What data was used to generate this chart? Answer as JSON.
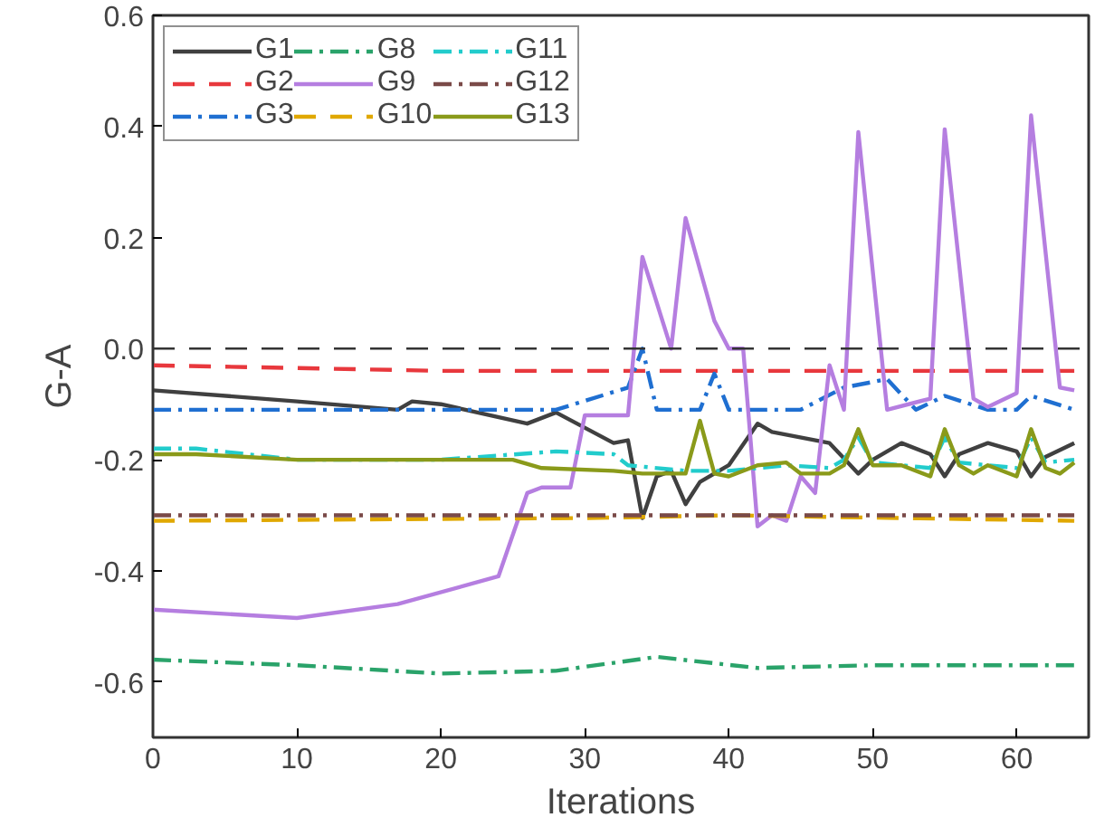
{
  "chart_data": {
    "type": "line",
    "xlabel": "Iterations",
    "ylabel": "G-A",
    "xlim": [
      0,
      65
    ],
    "ylim": [
      -0.7,
      0.6
    ],
    "xticks": [
      0,
      10,
      20,
      30,
      40,
      50,
      60
    ],
    "yticks": [
      {
        "value": -0.6,
        "label": "-0.6"
      },
      {
        "value": -0.4,
        "label": "-0.4"
      },
      {
        "value": -0.2,
        "label": "-0.2"
      },
      {
        "value": 0,
        "label": "0.0"
      },
      {
        "value": 0.2,
        "label": "0.2"
      },
      {
        "value": 0.4,
        "label": "0.4"
      },
      {
        "value": 0.6,
        "label": "0.6"
      }
    ],
    "grid": false,
    "legend": "top left",
    "marker": "none",
    "ref_lines": [
      {
        "axis": "y",
        "value": 0,
        "color": "#333333",
        "line_style": "dashed"
      }
    ],
    "series": [
      {
        "name": "G1",
        "color": "#404040",
        "line_style": "solid",
        "x": [
          0,
          10,
          17,
          18,
          20,
          26,
          28,
          32,
          33,
          34,
          35,
          36,
          37,
          38,
          40,
          42,
          43,
          47,
          49,
          50,
          52,
          54,
          55,
          56,
          58,
          60,
          61,
          62,
          64
        ],
        "values": [
          -0.075,
          -0.095,
          -0.11,
          -0.095,
          -0.1,
          -0.135,
          -0.115,
          -0.17,
          -0.165,
          -0.305,
          -0.23,
          -0.22,
          -0.28,
          -0.24,
          -0.21,
          -0.135,
          -0.15,
          -0.17,
          -0.225,
          -0.2,
          -0.17,
          -0.19,
          -0.23,
          -0.19,
          -0.17,
          -0.185,
          -0.23,
          -0.195,
          -0.17
        ]
      },
      {
        "name": "G2",
        "color": "#e8383d",
        "line_style": "dashed",
        "x": [
          0,
          20,
          40,
          64
        ],
        "values": [
          -0.03,
          -0.04,
          -0.04,
          -0.04
        ]
      },
      {
        "name": "G3",
        "color": "#1f6fd1",
        "line_style": "dashdot",
        "x": [
          0,
          28,
          33,
          34,
          35,
          38,
          39,
          40,
          45,
          48,
          51,
          53,
          55,
          58,
          60,
          61,
          64
        ],
        "values": [
          -0.11,
          -0.11,
          -0.07,
          0.0,
          -0.11,
          -0.11,
          -0.045,
          -0.11,
          -0.11,
          -0.07,
          -0.055,
          -0.11,
          -0.085,
          -0.11,
          -0.11,
          -0.085,
          -0.11
        ]
      },
      {
        "name": "G8",
        "color": "#2aa36a",
        "line_style": "dashdot",
        "x": [
          0,
          10,
          20,
          28,
          35,
          42,
          50,
          64
        ],
        "values": [
          -0.56,
          -0.57,
          -0.585,
          -0.58,
          -0.555,
          -0.575,
          -0.57,
          -0.57
        ]
      },
      {
        "name": "G9",
        "color": "#b57ee0",
        "line_style": "solid",
        "x": [
          0,
          10,
          17,
          24,
          26,
          27,
          29,
          30,
          33,
          34,
          36,
          37,
          39,
          40,
          41,
          42,
          43,
          44,
          45,
          46,
          47,
          48,
          49,
          51,
          54,
          55,
          57,
          58,
          60,
          61,
          63,
          64
        ],
        "values": [
          -0.47,
          -0.485,
          -0.46,
          -0.41,
          -0.26,
          -0.25,
          -0.25,
          -0.12,
          -0.12,
          0.165,
          0.0,
          0.235,
          0.05,
          0.0,
          0.0,
          -0.32,
          -0.3,
          -0.31,
          -0.23,
          -0.26,
          -0.03,
          -0.11,
          0.39,
          -0.11,
          -0.09,
          0.395,
          -0.09,
          -0.105,
          -0.08,
          0.42,
          -0.07,
          -0.075
        ]
      },
      {
        "name": "G10",
        "color": "#e0a800",
        "line_style": "dashed",
        "x": [
          0,
          30,
          40,
          64
        ],
        "values": [
          -0.31,
          -0.305,
          -0.3,
          -0.31
        ]
      },
      {
        "name": "G11",
        "color": "#22cccc",
        "line_style": "dashdot",
        "x": [
          0,
          3,
          10,
          20,
          28,
          32,
          33,
          37,
          40,
          44,
          47,
          48,
          49,
          50,
          54,
          55,
          56,
          60,
          61,
          62,
          64
        ],
        "values": [
          -0.18,
          -0.18,
          -0.2,
          -0.2,
          -0.185,
          -0.19,
          -0.21,
          -0.22,
          -0.22,
          -0.21,
          -0.215,
          -0.2,
          -0.16,
          -0.205,
          -0.215,
          -0.16,
          -0.205,
          -0.215,
          -0.16,
          -0.205,
          -0.2
        ]
      },
      {
        "name": "G12",
        "color": "#7a4a48",
        "line_style": "dashdot",
        "x": [
          0,
          64
        ],
        "values": [
          -0.3,
          -0.3
        ]
      },
      {
        "name": "G13",
        "color": "#8a9a1a",
        "line_style": "solid",
        "x": [
          0,
          3,
          10,
          25,
          27,
          32,
          34,
          37,
          38,
          39,
          40,
          42,
          44,
          45,
          47,
          48,
          49,
          50,
          52,
          54,
          55,
          56,
          57,
          58,
          60,
          61,
          62,
          63,
          64
        ],
        "values": [
          -0.19,
          -0.19,
          -0.2,
          -0.2,
          -0.215,
          -0.22,
          -0.225,
          -0.225,
          -0.13,
          -0.225,
          -0.23,
          -0.21,
          -0.205,
          -0.225,
          -0.225,
          -0.21,
          -0.145,
          -0.21,
          -0.21,
          -0.23,
          -0.145,
          -0.21,
          -0.225,
          -0.21,
          -0.23,
          -0.145,
          -0.215,
          -0.225,
          -0.205
        ]
      }
    ]
  }
}
